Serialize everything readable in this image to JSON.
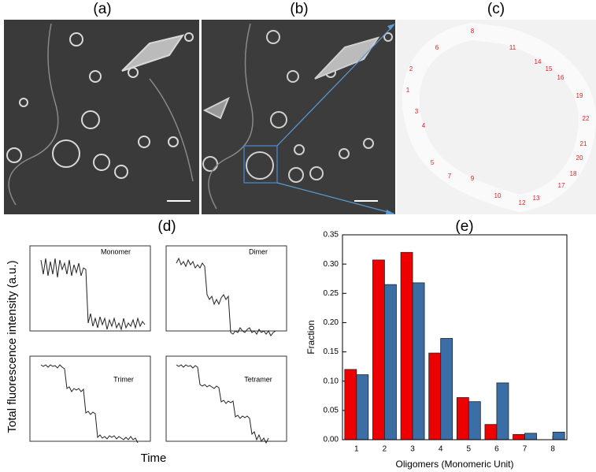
{
  "panel_labels": [
    "(a)",
    "(b)",
    "(c)",
    "(d)",
    "(e)"
  ],
  "spot_labels": [
    8,
    6,
    11,
    2,
    14,
    15,
    16,
    1,
    19,
    3,
    22,
    4,
    21,
    20,
    5,
    18,
    7,
    9,
    17,
    10,
    13,
    12
  ],
  "traces": {
    "y_label": "Total fluorescence intensity (a.u.)",
    "x_label": "Time",
    "titles": [
      "Monomer",
      "Dimer",
      "Trimer",
      "Tetramer"
    ]
  },
  "chart_data": {
    "type": "bar",
    "categories": [
      1,
      2,
      3,
      4,
      5,
      6,
      7,
      8
    ],
    "series": [
      {
        "color": "#ee0000",
        "values": [
          0.12,
          0.307,
          0.32,
          0.148,
          0.072,
          0.026,
          0.009,
          0
        ]
      },
      {
        "color": "#3a6ea5",
        "values": [
          0.111,
          0.265,
          0.268,
          0.173,
          0.065,
          0.097,
          0.011,
          0.013
        ]
      }
    ],
    "xlabel": "Oligomers (Monomeric Unit)",
    "ylabel": "Fraction",
    "ylim": [
      0,
      0.35
    ],
    "yticks": [
      {
        "value": 0,
        "label": "0.00"
      },
      {
        "value": 0.05,
        "label": "0.05"
      },
      {
        "value": 0.1,
        "label": "0.10"
      },
      {
        "value": 0.15,
        "label": "0.15"
      },
      {
        "value": 0.2,
        "label": "0.20"
      },
      {
        "value": 0.25,
        "label": "0.25"
      },
      {
        "value": 0.3,
        "label": "0.30"
      },
      {
        "value": 0.35,
        "label": "0.35"
      }
    ]
  }
}
